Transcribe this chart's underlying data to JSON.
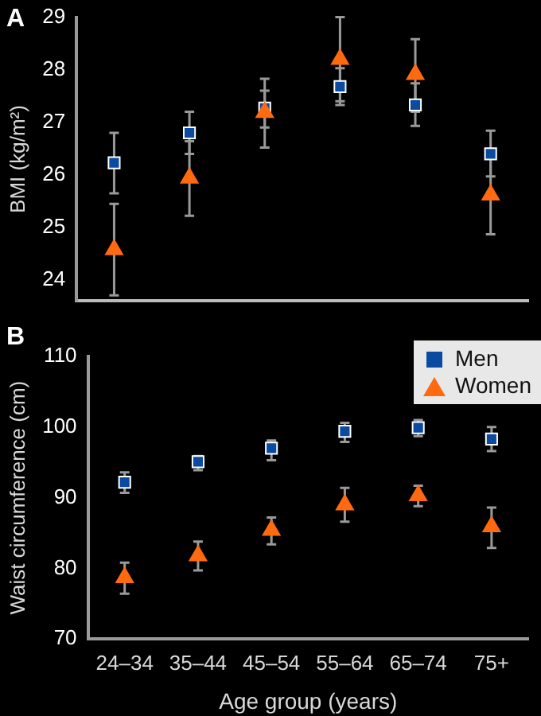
{
  "chart_data": [
    {
      "type": "scatter",
      "ylabel": "BMI (kg/m²)",
      "annotations": [
        "A"
      ],
      "categories": [
        null,
        null,
        null,
        null,
        null,
        null
      ],
      "ylim": [
        23.6,
        29
      ],
      "yticks": [
        24,
        25,
        26,
        27,
        28,
        29
      ],
      "tick_labels": "y",
      "legend": false,
      "series": [
        {
          "color": "#0a4aa0",
          "marker": "square",
          "values": [
            26.23,
            26.8,
            27.27,
            27.68,
            27.33,
            26.4
          ],
          "errors": [
            [
              25.65,
              26.8
            ],
            [
              26.4,
              27.2
            ],
            [
              26.9,
              27.6
            ],
            [
              27.33,
              28.03
            ],
            [
              26.93,
              27.74
            ],
            [
              25.97,
              26.84
            ]
          ]
        },
        {
          "color": "#ff6a10",
          "marker": "triangle",
          "values": [
            24.58,
            25.94,
            27.19,
            28.2,
            27.91,
            25.62
          ],
          "errors": [
            [
              23.71,
              25.45
            ],
            [
              25.22,
              26.64
            ],
            [
              26.52,
              27.83
            ],
            [
              27.4,
              29.0
            ],
            [
              27.2,
              28.58
            ],
            [
              24.87,
              26.35
            ]
          ]
        }
      ]
    },
    {
      "type": "scatter",
      "ylabel": "Waist circumference (cm)",
      "xlabel": "Age group (years)",
      "annotations": [
        "B"
      ],
      "categories": [
        "24–34",
        "35–44",
        "45–54",
        "55–64",
        "65–74",
        "75+"
      ],
      "ylim": [
        70,
        110
      ],
      "yticks": [
        70,
        80,
        90,
        100,
        110
      ],
      "legend": "top right",
      "series": [
        {
          "name": "Men",
          "color": "#0a4aa0",
          "marker": "square",
          "values": [
            92.2,
            95.1,
            97.0,
            99.4,
            99.9,
            98.3
          ],
          "errors": [
            [
              90.7,
              93.6
            ],
            [
              93.9,
              95.9
            ],
            [
              95.3,
              98.1
            ],
            [
              97.9,
              100.6
            ],
            [
              98.7,
              101
            ],
            [
              96.6,
              100
            ]
          ]
        },
        {
          "name": "Women",
          "color": "#ff6a10",
          "marker": "triangle",
          "values": [
            78.7,
            81.8,
            85.4,
            89.0,
            90.3,
            85.9
          ],
          "errors": [
            [
              76.4,
              80.8
            ],
            [
              79.7,
              83.8
            ],
            [
              83.4,
              87.2
            ],
            [
              86.6,
              91.4
            ],
            [
              88.8,
              91.7
            ],
            [
              82.9,
              88.6
            ]
          ]
        }
      ]
    }
  ]
}
